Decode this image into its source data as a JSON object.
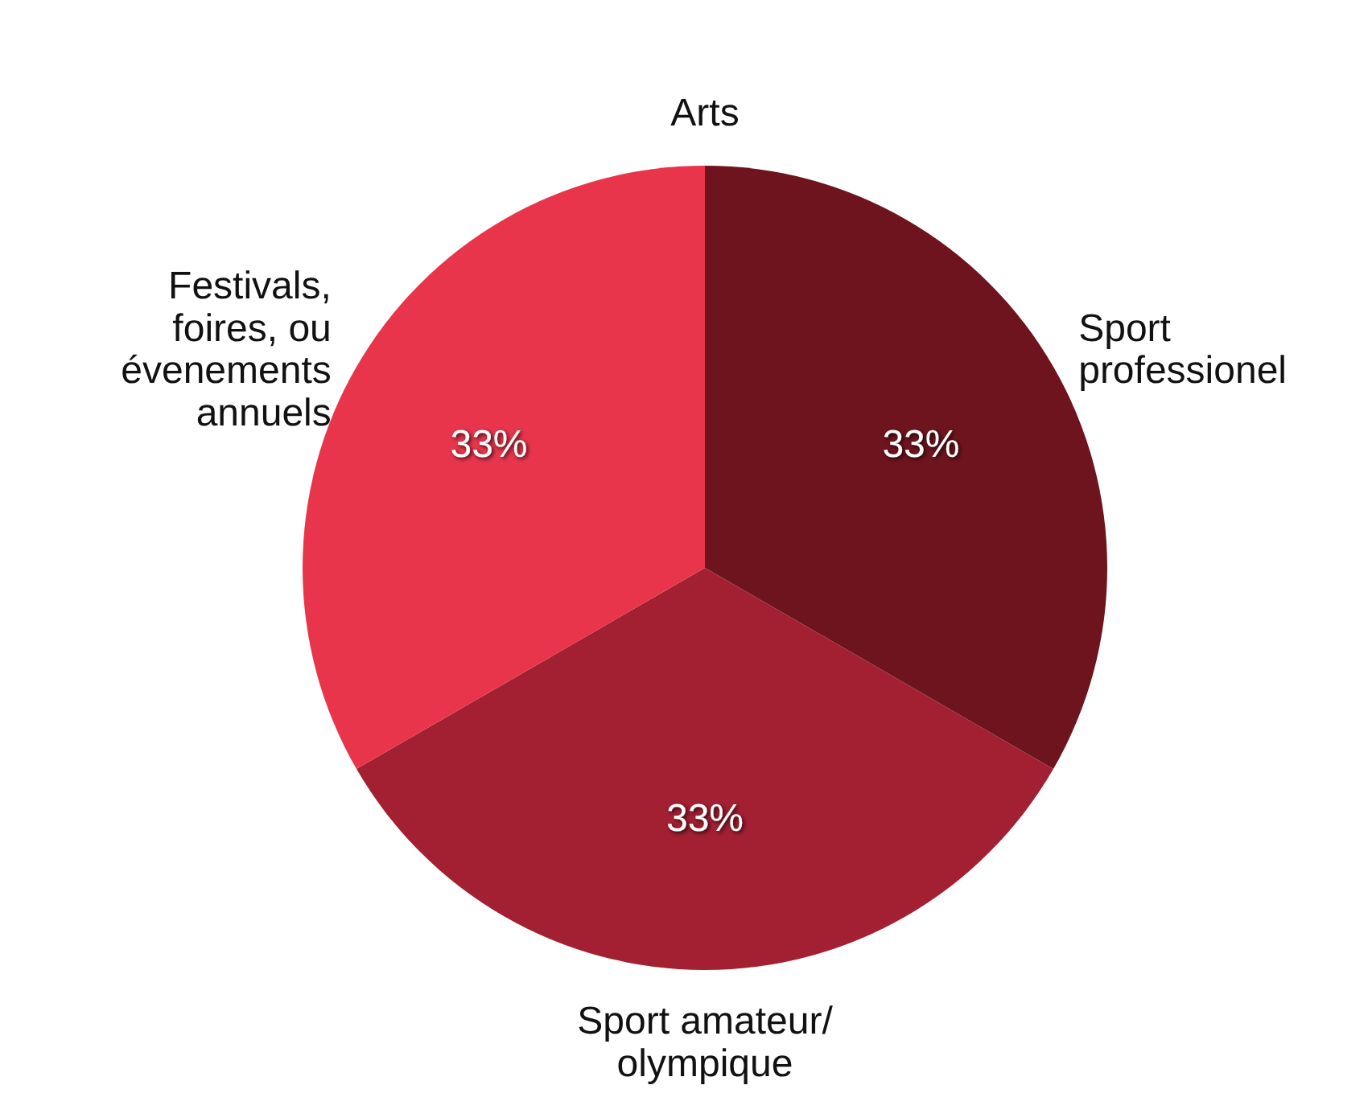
{
  "chart_data": {
    "type": "pie",
    "categories": [
      "Sport professionel",
      "Sport amateur/ olympique",
      "Festivals, foires, ou évenements annuels",
      "Arts"
    ],
    "values": [
      33,
      33,
      33,
      0
    ],
    "colors": [
      "#6e141e",
      "#a31f32",
      "#e8354b",
      "#f26070"
    ],
    "value_labels": [
      "33%",
      "33%",
      "33%",
      null
    ]
  }
}
